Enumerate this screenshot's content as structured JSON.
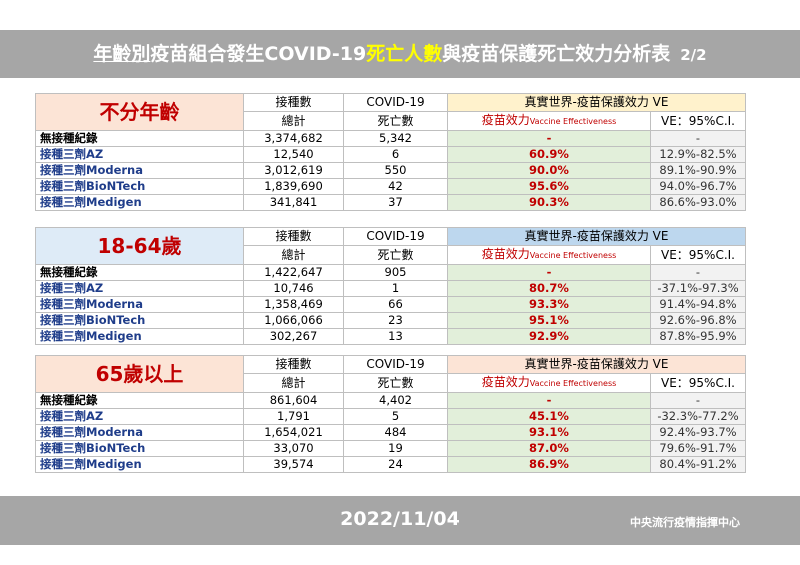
{
  "header": {
    "title_parts": [
      "年齡別",
      "疫苗組合發生COVID-19",
      "死亡人數",
      "與疫苗保護死亡效力分析表",
      "2/2"
    ]
  },
  "tables": [
    {
      "group": "不分年齡",
      "headers": {
        "doses": "接種數",
        "covid": "COVID-19",
        "ve": "真實世界-疫苗保護效力 VE",
        "total": "總計",
        "deaths": "死亡數",
        "ve_eff": "疫苗效力",
        "ve_eff_en": "Vaccine Effectiveness",
        "ci": "VE：95%C.I."
      },
      "rows": [
        [
          "無接種紀錄",
          "3,374,682",
          "5,342",
          "-",
          "-"
        ],
        [
          "接種三劑AZ",
          "12,540",
          "6",
          "60.9%",
          "12.9%-82.5%"
        ],
        [
          "接種三劑Moderna",
          "3,012,619",
          "550",
          "90.0%",
          "89.1%-90.9%"
        ],
        [
          "接種三劑BioNTech",
          "1,839,690",
          "42",
          "95.6%",
          "94.0%-96.7%"
        ],
        [
          "接種三劑Medigen",
          "341,841",
          "37",
          "90.3%",
          "86.6%-93.0%"
        ]
      ]
    },
    {
      "group": "18-64歲",
      "headers": {
        "doses": "接種數",
        "covid": "COVID-19",
        "ve": "真實世界-疫苗保護效力 VE",
        "total": "總計",
        "deaths": "死亡數",
        "ve_eff": "疫苗效力",
        "ve_eff_en": "Vaccine Effectiveness",
        "ci": "VE：95%C.I."
      },
      "rows": [
        [
          "無接種紀錄",
          "1,422,647",
          "905",
          "-",
          "-"
        ],
        [
          "接種三劑AZ",
          "10,746",
          "1",
          "80.7%",
          "-37.1%-97.3%"
        ],
        [
          "接種三劑Moderna",
          "1,358,469",
          "66",
          "93.3%",
          "91.4%-94.8%"
        ],
        [
          "接種三劑BioNTech",
          "1,066,066",
          "23",
          "95.1%",
          "92.6%-96.8%"
        ],
        [
          "接種三劑Medigen",
          "302,267",
          "13",
          "92.9%",
          "87.8%-95.9%"
        ]
      ]
    },
    {
      "group": "65歲以上",
      "headers": {
        "doses": "接種數",
        "covid": "COVID-19",
        "ve": "真實世界-疫苗保護效力 VE",
        "total": "總計",
        "deaths": "死亡數",
        "ve_eff": "疫苗效力",
        "ve_eff_en": "Vaccine Effectiveness",
        "ci": "VE：95%C.I."
      },
      "rows": [
        [
          "無接種紀錄",
          "861,604",
          "4,402",
          "-",
          "-"
        ],
        [
          "接種三劑AZ",
          "1,791",
          "5",
          "45.1%",
          "-32.3%-77.2%"
        ],
        [
          "接種三劑Moderna",
          "1,654,021",
          "484",
          "93.1%",
          "92.4%-93.7%"
        ],
        [
          "接種三劑BioNTech",
          "33,070",
          "19",
          "87.0%",
          "79.6%-91.7%"
        ],
        [
          "接種三劑Medigen",
          "39,574",
          "24",
          "86.9%",
          "80.4%-91.2%"
        ]
      ]
    }
  ],
  "footer": {
    "date": "2022/11/04",
    "agency": "中央流行疫情指揮中心"
  }
}
